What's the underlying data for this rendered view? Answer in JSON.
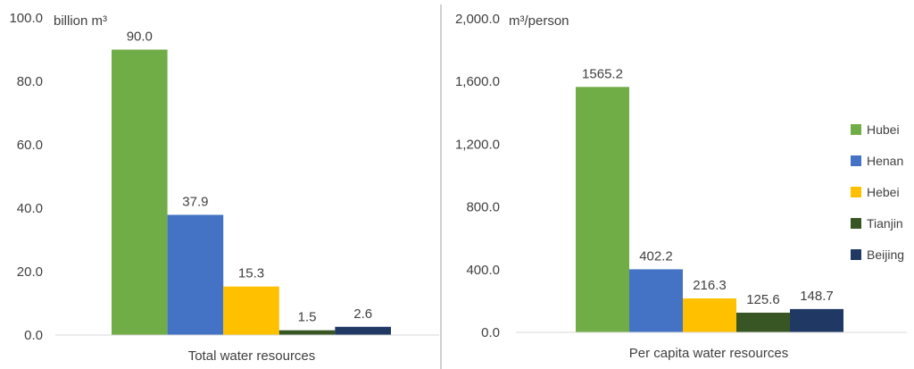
{
  "colors": {
    "Hubei": "#70ad47",
    "Henan": "#4472c4",
    "Hebei": "#ffc000",
    "Tianjin": "#375623",
    "Beijing": "#203864",
    "axis": "#d9d9d9",
    "divider": "#d0d0d0",
    "text": "#404040"
  },
  "chart_data": [
    {
      "type": "bar",
      "categories": [
        "Total water resources"
      ],
      "series": [
        {
          "name": "Hubei",
          "values": [
            90.0
          ]
        },
        {
          "name": "Henan",
          "values": [
            37.9
          ]
        },
        {
          "name": "Hebei",
          "values": [
            15.3
          ]
        },
        {
          "name": "Tianjin",
          "values": [
            1.5
          ]
        },
        {
          "name": "Beijing",
          "values": [
            2.6
          ]
        }
      ],
      "data_labels": [
        "90.0",
        "37.9",
        "15.3",
        "1.5",
        "2.6"
      ],
      "unit_label": "billion m³",
      "ylim": [
        0,
        100
      ],
      "yticks": [
        "0.0",
        "20.0",
        "40.0",
        "60.0",
        "80.0",
        "100.0"
      ],
      "grid": false,
      "legend": "none"
    },
    {
      "type": "bar",
      "categories": [
        "Per capita water resources"
      ],
      "series": [
        {
          "name": "Hubei",
          "values": [
            1565.2
          ]
        },
        {
          "name": "Henan",
          "values": [
            402.2
          ]
        },
        {
          "name": "Hebei",
          "values": [
            216.3
          ]
        },
        {
          "name": "Tianjin",
          "values": [
            125.6
          ]
        },
        {
          "name": "Beijing",
          "values": [
            148.7
          ]
        }
      ],
      "data_labels": [
        "1565.2",
        "402.2",
        "216.3",
        "125.6",
        "148.7"
      ],
      "unit_label": "m³/person",
      "ylim": [
        0,
        2000
      ],
      "yticks": [
        "0.0",
        "400.0",
        "800.0",
        "1,200.0",
        "1,600.0",
        "2,000.0"
      ],
      "grid": false,
      "legend": "right"
    }
  ]
}
